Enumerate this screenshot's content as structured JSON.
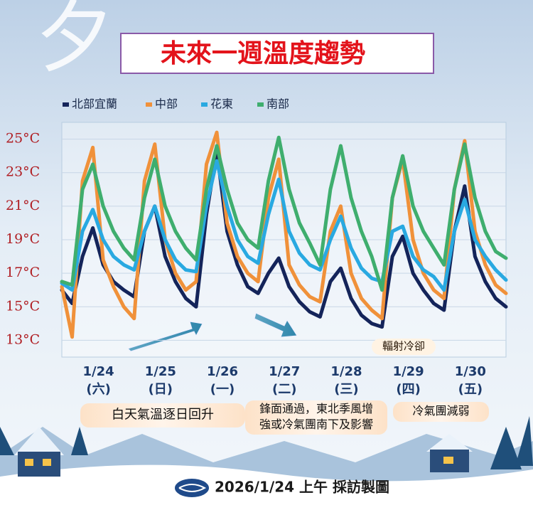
{
  "chart_data": {
    "type": "line",
    "watermark": "夕",
    "title": "未來一週溫度趨勢",
    "categories": [
      null,
      null,
      null,
      "1/24",
      null,
      null,
      null,
      null,
      null,
      "1/25",
      null,
      null,
      null,
      null,
      null,
      "1/26",
      null,
      null,
      null,
      null,
      null,
      "1/27",
      null,
      null,
      null,
      null,
      null,
      "1/28",
      null,
      null,
      null,
      null,
      null,
      "1/29",
      null,
      null,
      null,
      null,
      null,
      "1/30",
      null,
      null,
      null,
      null
    ],
    "category_sublabels": [
      null,
      null,
      null,
      "(六)",
      null,
      null,
      null,
      null,
      null,
      "(日)",
      null,
      null,
      null,
      null,
      null,
      "(一)",
      null,
      null,
      null,
      null,
      null,
      "(二)",
      null,
      null,
      null,
      null,
      null,
      "(三)",
      null,
      null,
      null,
      null,
      null,
      "(四)",
      null,
      null,
      null,
      null,
      null,
      "(五)",
      null,
      null,
      null,
      null
    ],
    "series": [
      {
        "name": "北部宜蘭",
        "color": "#14245a",
        "values": [
          16.0,
          15.2,
          18.0,
          19.7,
          17.5,
          16.5,
          16.0,
          15.6,
          19.5,
          21.0,
          18.0,
          16.5,
          15.5,
          15.0,
          20.5,
          24.3,
          19.5,
          17.5,
          16.2,
          15.8,
          17.0,
          17.9,
          16.2,
          15.3,
          14.7,
          14.4,
          16.5,
          17.3,
          15.5,
          14.5,
          14.0,
          13.8,
          18.0,
          19.2,
          17.0,
          16.0,
          15.2,
          14.8,
          19.5,
          22.2,
          18.0,
          16.5,
          15.5,
          15.0
        ]
      },
      {
        "name": "中部",
        "color": "#f0913a",
        "values": [
          16.2,
          13.2,
          22.5,
          24.5,
          17.8,
          16.2,
          15.0,
          14.3,
          22.5,
          24.7,
          19.0,
          17.0,
          16.0,
          16.5,
          23.5,
          25.4,
          20.0,
          18.0,
          17.0,
          16.5,
          21.5,
          23.8,
          17.5,
          16.3,
          15.6,
          15.3,
          19.5,
          21.0,
          17.0,
          15.5,
          14.8,
          14.3,
          21.5,
          23.8,
          19.0,
          17.0,
          16.0,
          15.5,
          22.0,
          24.9,
          19.5,
          17.5,
          16.3,
          15.8
        ]
      },
      {
        "name": "花東",
        "color": "#29a9e1",
        "values": [
          16.4,
          16.0,
          19.5,
          20.8,
          19.0,
          18.0,
          17.5,
          17.2,
          19.5,
          21.0,
          19.0,
          17.8,
          17.2,
          17.1,
          21.0,
          23.7,
          21.0,
          19.0,
          18.0,
          17.6,
          20.5,
          22.6,
          19.5,
          18.2,
          17.5,
          17.2,
          19.0,
          20.4,
          18.5,
          17.3,
          16.7,
          16.5,
          19.5,
          19.8,
          18.0,
          17.2,
          16.8,
          16.0,
          19.5,
          21.4,
          19.0,
          18.0,
          17.2,
          16.6
        ]
      },
      {
        "name": "南部",
        "color": "#3fae6e",
        "values": [
          16.5,
          16.3,
          22.0,
          23.5,
          21.0,
          19.5,
          18.5,
          17.8,
          21.5,
          23.8,
          21.0,
          19.5,
          18.5,
          17.8,
          22.0,
          24.6,
          22.0,
          20.0,
          19.0,
          18.5,
          22.5,
          25.1,
          22.0,
          20.0,
          18.8,
          17.5,
          22.0,
          24.6,
          21.5,
          19.5,
          18.0,
          16.0,
          21.5,
          24.0,
          21.0,
          19.5,
          18.5,
          17.5,
          22.0,
          24.7,
          21.5,
          19.5,
          18.3,
          17.9
        ]
      }
    ],
    "ylim": [
      12,
      26
    ],
    "yticks": [
      {
        "value": 13,
        "label": "13°C"
      },
      {
        "value": 15,
        "label": "15°C"
      },
      {
        "value": 17,
        "label": "17°C"
      },
      {
        "value": 19,
        "label": "19°C"
      },
      {
        "value": 21,
        "label": "21°C"
      },
      {
        "value": 23,
        "label": "23°C"
      },
      {
        "value": 25,
        "label": "25°C"
      }
    ],
    "grid": true,
    "annotations": [
      {
        "lines": [
          "白天氣溫逐日回升"
        ]
      },
      {
        "lines": [
          "鋒面通過，東北季風增",
          "強或冷氣團南下及影響"
        ]
      },
      {
        "lines": [
          "冷氣團減弱"
        ]
      },
      {
        "lines": [
          "輻射冷卻"
        ]
      }
    ],
    "caption": "2026/1/24 上午 採訪製圖"
  }
}
